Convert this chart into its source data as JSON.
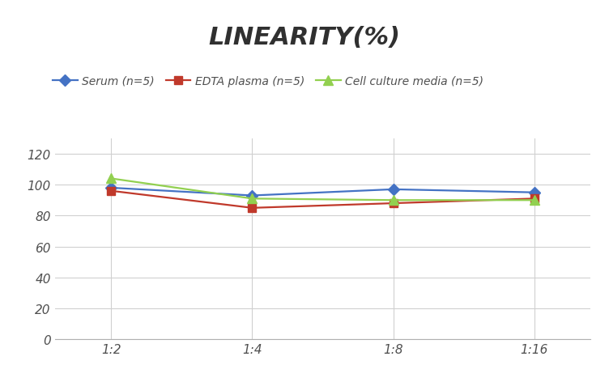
{
  "title": "LINEARITY(%)",
  "title_fontsize": 22,
  "title_fontstyle": "italic",
  "title_fontweight": "bold",
  "title_color": "#303030",
  "x_labels": [
    "1:2",
    "1:4",
    "1:8",
    "1:16"
  ],
  "x_values": [
    0,
    1,
    2,
    3
  ],
  "series": [
    {
      "label": "Serum (n=5)",
      "values": [
        98,
        93,
        97,
        95
      ],
      "color": "#4472C4",
      "marker": "D",
      "marker_size": 7,
      "linewidth": 1.6
    },
    {
      "label": "EDTA plasma (n=5)",
      "values": [
        96,
        85,
        88,
        91
      ],
      "color": "#C0392B",
      "marker": "s",
      "marker_size": 7,
      "linewidth": 1.6
    },
    {
      "label": "Cell culture media (n=5)",
      "values": [
        104,
        91,
        90,
        90
      ],
      "color": "#92D050",
      "marker": "^",
      "marker_size": 8,
      "linewidth": 1.6
    }
  ],
  "ylim": [
    0,
    130
  ],
  "yticks": [
    0,
    20,
    40,
    60,
    80,
    100,
    120
  ],
  "background_color": "#ffffff",
  "grid_color": "#d0d0d0",
  "legend_fontsize": 10,
  "tick_fontsize": 11,
  "tick_color": "#505050"
}
